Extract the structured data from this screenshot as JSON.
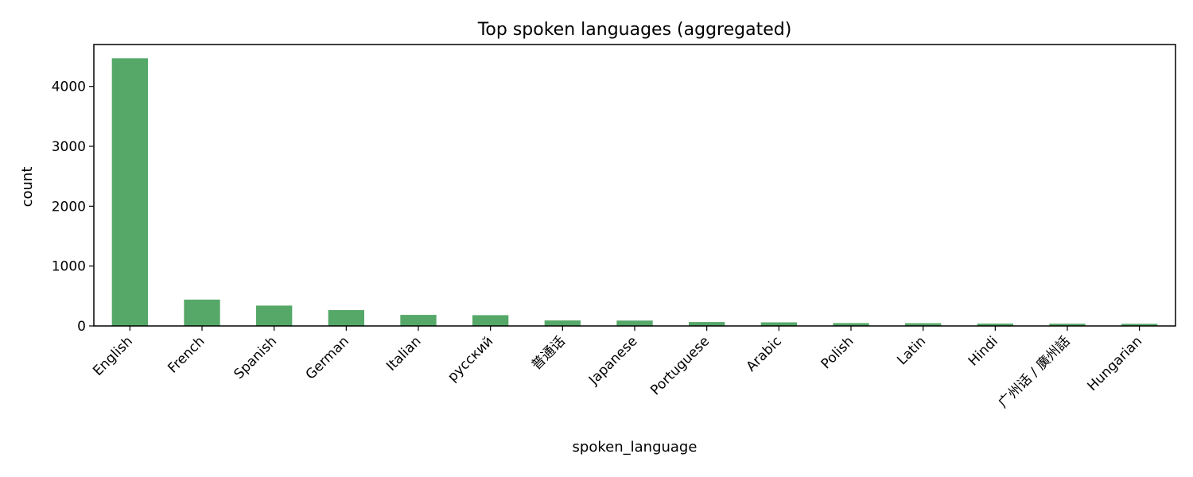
{
  "chart_data": {
    "type": "bar",
    "title": "Top spoken languages (aggregated)",
    "xlabel": "spoken_language",
    "ylabel": "count",
    "categories": [
      "English",
      "French",
      "Spanish",
      "German",
      "Italian",
      "русский",
      "普通话",
      "Japanese",
      "Portuguese",
      "Arabic",
      "Polish",
      "Latin",
      "Hindi",
      "广州话 / 廣州話",
      "Hungarian"
    ],
    "values": [
      4470,
      440,
      340,
      265,
      185,
      180,
      92,
      90,
      65,
      60,
      48,
      46,
      40,
      38,
      36
    ],
    "ylim": [
      0,
      4700
    ],
    "yticks": [
      0,
      1000,
      2000,
      3000,
      4000
    ],
    "bar_color": "#55a868",
    "grid": false,
    "legend": "none"
  }
}
